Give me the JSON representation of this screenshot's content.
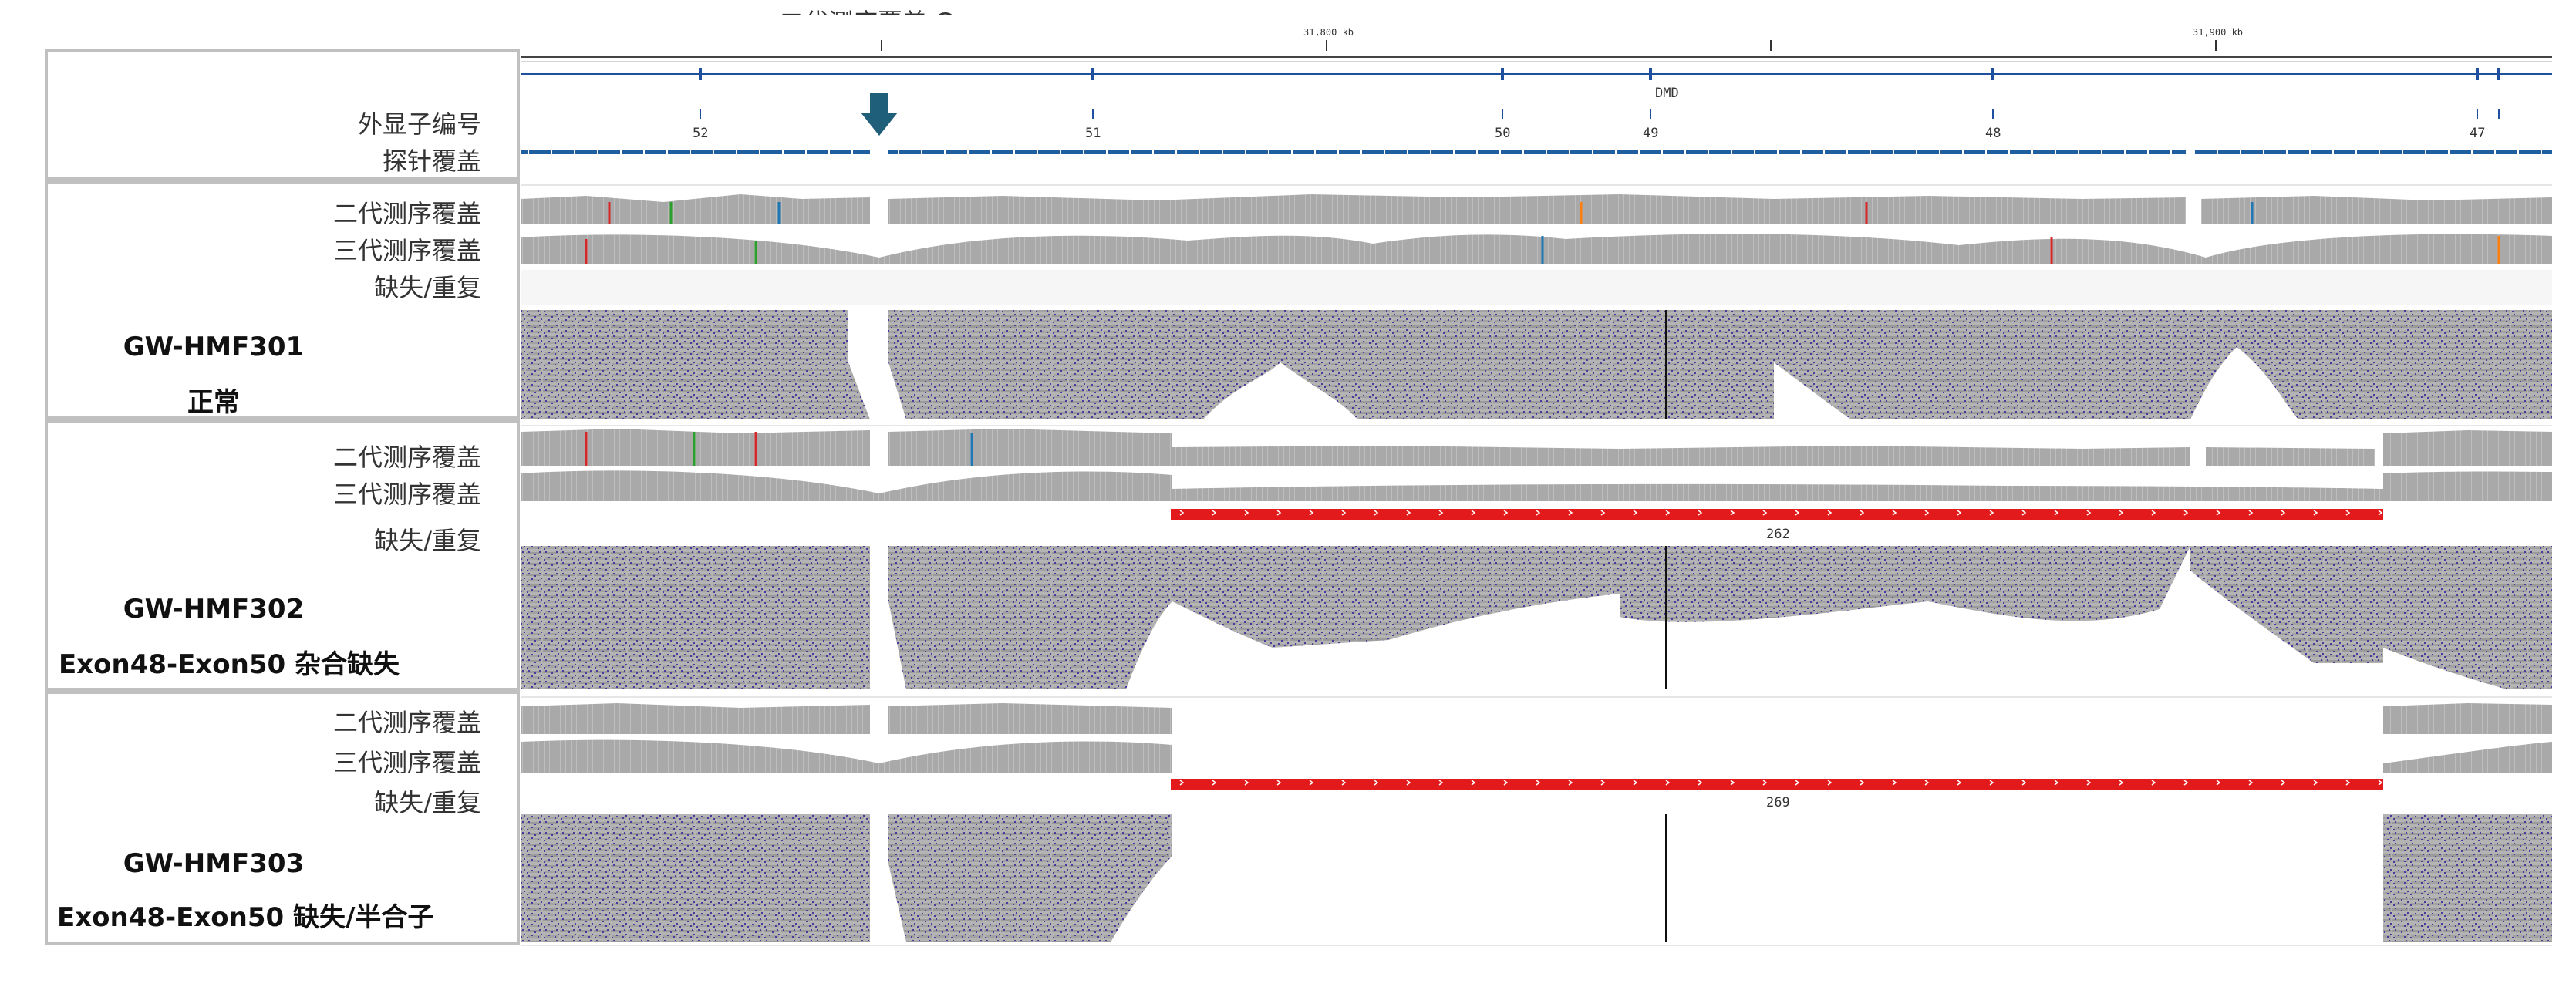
{
  "header": {
    "gap_label": "二代测序覆盖 Gap",
    "ruler_ticks": [
      "31,800 kb",
      "31,900 kb"
    ],
    "gene_name": "DMD"
  },
  "reference": {
    "exon_label": "外显子编号",
    "probe_label": "探针覆盖",
    "exon_numbers": [
      "52",
      "51",
      "50",
      "49",
      "48",
      "47"
    ]
  },
  "track_labels": {
    "ngs": "二代测序覆盖",
    "tgs": "三代测序覆盖",
    "cnv": "缺失/重复"
  },
  "samples": [
    {
      "name": "GW-HMF301",
      "desc": "正常",
      "ngs_range": "[0 - 126]",
      "tgs_range": "[0 - 300]",
      "cnv_value": ""
    },
    {
      "name": "GW-HMF302",
      "desc": "Exon48-Exon50 杂合缺失",
      "ngs_range": "[0 - 279]",
      "tgs_range": "[0 - 365]",
      "cnv_value": "262"
    },
    {
      "name": "GW-HMF303",
      "desc": "Exon48-Exon50 缺失/半合子",
      "ngs_range": "[0 - 182]",
      "tgs_range": "[0 - 340]",
      "cnv_value": "269"
    }
  ],
  "colors": {
    "coverage_gray": "#a9a9a9",
    "read_purple": "#4b3a9c",
    "deletion_red": "#e31a1c",
    "probe_blue": "#1f5f9f",
    "arrow_teal": "#1f5f7a",
    "panel_border": "#c0c0c0"
  },
  "icons": {
    "gap_marker": "down-arrow-icon"
  }
}
